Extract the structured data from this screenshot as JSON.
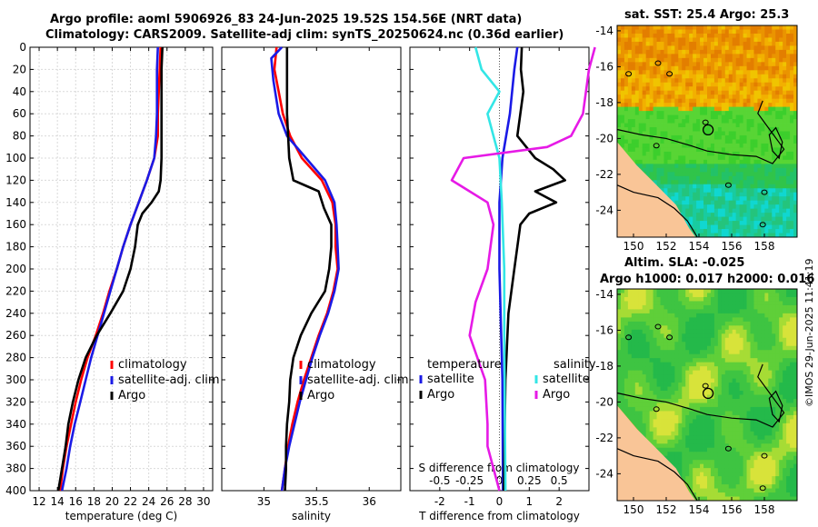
{
  "figure": {
    "title_line1": "Argo profile: aoml 5906926_83 24-Jun-2025 19.52S 154.56E (NRT data)",
    "title_line2": "Climatology: CARS2009. Satellite-adj clim: synTS_20250624.nc (0.36d earlier)",
    "sst_title": "sat. SST: 25.4 Argo: 25.3",
    "sla_title1": "Altim. SLA: -0.025",
    "sla_title2": "Argo h1000: 0.017 h2000: 0.016",
    "stamp": "©IMOS 29-Jun-2025 11:41:19"
  },
  "colors": {
    "climatology": "#ff0000",
    "satellite": "#1a1ae6",
    "argo": "#000000",
    "sal_satellite": "#33e6e6",
    "sal_argo": "#e61ae6"
  },
  "chart_data": [
    {
      "type": "line",
      "id": "temperature",
      "xlabel": "temperature (deg C)",
      "ylabel": "",
      "xlim": [
        11,
        31
      ],
      "ylim": [
        400,
        0
      ],
      "xticks": [
        12,
        14,
        16,
        18,
        20,
        22,
        24,
        26,
        28,
        30
      ],
      "yticks": [
        0,
        20,
        40,
        60,
        80,
        100,
        120,
        140,
        160,
        180,
        200,
        220,
        240,
        260,
        280,
        300,
        320,
        340,
        360,
        380,
        400
      ],
      "grid": true,
      "legend": [
        "climatology",
        "satellite-adj. clim",
        "Argo"
      ],
      "series": [
        {
          "name": "climatology",
          "color_key": "climatology",
          "points": [
            [
              25.3,
              0
            ],
            [
              25.2,
              20
            ],
            [
              25.1,
              40
            ],
            [
              25.0,
              60
            ],
            [
              25.0,
              80
            ],
            [
              24.6,
              100
            ],
            [
              23.8,
              120
            ],
            [
              22.9,
              140
            ],
            [
              22.0,
              160
            ],
            [
              21.2,
              180
            ],
            [
              20.5,
              200
            ],
            [
              19.7,
              220
            ],
            [
              19.0,
              240
            ],
            [
              18.2,
              260
            ],
            [
              17.3,
              280
            ],
            [
              16.6,
              300
            ],
            [
              16.0,
              320
            ],
            [
              15.5,
              340
            ],
            [
              15.0,
              360
            ],
            [
              14.6,
              380
            ],
            [
              14.3,
              400
            ]
          ]
        },
        {
          "name": "satellite-adj. clim",
          "color_key": "satellite",
          "points": [
            [
              25.0,
              0
            ],
            [
              24.9,
              20
            ],
            [
              24.9,
              40
            ],
            [
              24.9,
              60
            ],
            [
              24.8,
              80
            ],
            [
              24.6,
              100
            ],
            [
              23.8,
              120
            ],
            [
              22.9,
              140
            ],
            [
              22.0,
              160
            ],
            [
              21.2,
              180
            ],
            [
              20.5,
              200
            ],
            [
              19.8,
              220
            ],
            [
              19.1,
              240
            ],
            [
              18.4,
              260
            ],
            [
              17.7,
              280
            ],
            [
              17.1,
              300
            ],
            [
              16.5,
              320
            ],
            [
              15.9,
              340
            ],
            [
              15.4,
              360
            ],
            [
              15.0,
              380
            ],
            [
              14.5,
              400
            ]
          ]
        },
        {
          "name": "Argo",
          "color_key": "argo",
          "points": [
            [
              25.5,
              0
            ],
            [
              25.4,
              20
            ],
            [
              25.4,
              40
            ],
            [
              25.4,
              60
            ],
            [
              25.4,
              80
            ],
            [
              25.4,
              100
            ],
            [
              25.3,
              120
            ],
            [
              25.1,
              130
            ],
            [
              24.3,
              140
            ],
            [
              23.3,
              150
            ],
            [
              22.8,
              160
            ],
            [
              22.5,
              180
            ],
            [
              22.0,
              200
            ],
            [
              21.2,
              220
            ],
            [
              19.8,
              240
            ],
            [
              18.3,
              260
            ],
            [
              17.1,
              280
            ],
            [
              16.3,
              300
            ],
            [
              15.7,
              320
            ],
            [
              15.2,
              340
            ],
            [
              14.9,
              360
            ],
            [
              14.5,
              380
            ],
            [
              14.1,
              400
            ]
          ]
        }
      ]
    },
    {
      "type": "line",
      "id": "salinity",
      "xlabel": "salinity",
      "ylabel": "",
      "xlim": [
        34.6,
        36.3
      ],
      "ylim": [
        400,
        0
      ],
      "xticks": [
        35,
        35.5,
        36
      ],
      "yticks": [
        0,
        20,
        40,
        60,
        80,
        100,
        120,
        140,
        160,
        180,
        200,
        220,
        240,
        260,
        280,
        300,
        320,
        340,
        360,
        380,
        400
      ],
      "grid": false,
      "legend": [
        "climatology",
        "satellite-adj. clim",
        "Argo"
      ],
      "series": [
        {
          "name": "climatology",
          "color_key": "climatology",
          "points": [
            [
              35.12,
              0
            ],
            [
              35.1,
              20
            ],
            [
              35.14,
              40
            ],
            [
              35.18,
              60
            ],
            [
              35.25,
              80
            ],
            [
              35.36,
              100
            ],
            [
              35.55,
              120
            ],
            [
              35.65,
              140
            ],
            [
              35.68,
              160
            ],
            [
              35.68,
              180
            ],
            [
              35.7,
              200
            ],
            [
              35.66,
              220
            ],
            [
              35.6,
              240
            ],
            [
              35.52,
              260
            ],
            [
              35.45,
              280
            ],
            [
              35.38,
              300
            ],
            [
              35.32,
              320
            ],
            [
              35.27,
              340
            ],
            [
              35.23,
              360
            ],
            [
              35.2,
              380
            ],
            [
              35.17,
              400
            ]
          ]
        },
        {
          "name": "satellite-adj. clim",
          "color_key": "satellite",
          "points": [
            [
              35.17,
              0
            ],
            [
              35.07,
              10
            ],
            [
              35.09,
              30
            ],
            [
              35.14,
              60
            ],
            [
              35.22,
              80
            ],
            [
              35.4,
              100
            ],
            [
              35.58,
              120
            ],
            [
              35.67,
              140
            ],
            [
              35.69,
              160
            ],
            [
              35.7,
              180
            ],
            [
              35.71,
              200
            ],
            [
              35.67,
              220
            ],
            [
              35.61,
              240
            ],
            [
              35.53,
              260
            ],
            [
              35.46,
              280
            ],
            [
              35.4,
              300
            ],
            [
              35.34,
              320
            ],
            [
              35.29,
              340
            ],
            [
              35.24,
              360
            ],
            [
              35.2,
              380
            ],
            [
              35.17,
              400
            ]
          ]
        },
        {
          "name": "Argo",
          "color_key": "argo",
          "points": [
            [
              35.22,
              0
            ],
            [
              35.22,
              20
            ],
            [
              35.22,
              40
            ],
            [
              35.22,
              60
            ],
            [
              35.23,
              80
            ],
            [
              35.24,
              100
            ],
            [
              35.28,
              120
            ],
            [
              35.4,
              125
            ],
            [
              35.52,
              130
            ],
            [
              35.57,
              145
            ],
            [
              35.64,
              160
            ],
            [
              35.64,
              180
            ],
            [
              35.62,
              200
            ],
            [
              35.58,
              220
            ],
            [
              35.45,
              240
            ],
            [
              35.35,
              260
            ],
            [
              35.28,
              280
            ],
            [
              35.25,
              300
            ],
            [
              35.24,
              320
            ],
            [
              35.22,
              340
            ],
            [
              35.21,
              360
            ],
            [
              35.21,
              380
            ],
            [
              35.2,
              400
            ]
          ]
        }
      ]
    },
    {
      "type": "line",
      "id": "difference",
      "xlabel": "T difference from climatology",
      "top_xlabel": "S difference from climatology",
      "ylabel": "",
      "xlim": [
        -3,
        3
      ],
      "top_xlim": [
        -0.75,
        0.75
      ],
      "ylim": [
        400,
        0
      ],
      "xticks": [
        -2,
        -1,
        0,
        1,
        2
      ],
      "xtick_labels": [
        "-2",
        "-1",
        "0",
        "1",
        "2"
      ],
      "top_xticks": [
        -0.5,
        -0.25,
        0,
        0.25,
        0.5
      ],
      "top_xtick_labels": [
        "-0.5",
        "-0.25",
        "0",
        "0.25",
        "0.5"
      ],
      "yticks": [
        0,
        20,
        40,
        60,
        80,
        100,
        120,
        140,
        160,
        180,
        200,
        220,
        240,
        260,
        280,
        300,
        320,
        340,
        360,
        380,
        400
      ],
      "grid": false,
      "legend_headers": [
        "temperature",
        "salinity"
      ],
      "legend_temperature": [
        "satellite",
        "Argo"
      ],
      "legend_salinity": [
        "satellite",
        "Argo"
      ],
      "series": [
        {
          "name": "T satellite",
          "color_key": "satellite",
          "points": [
            [
              0.6,
              0
            ],
            [
              0.5,
              20
            ],
            [
              0.35,
              60
            ],
            [
              0.1,
              100
            ],
            [
              0.0,
              140
            ],
            [
              0.0,
              180
            ],
            [
              0.0,
              200
            ],
            [
              0.05,
              250
            ],
            [
              0.1,
              300
            ],
            [
              0.12,
              400
            ]
          ]
        },
        {
          "name": "T Argo",
          "color_key": "argo",
          "points": [
            [
              0.75,
              0
            ],
            [
              0.72,
              20
            ],
            [
              0.8,
              40
            ],
            [
              0.7,
              60
            ],
            [
              0.6,
              80
            ],
            [
              1.2,
              100
            ],
            [
              1.8,
              110
            ],
            [
              2.2,
              120
            ],
            [
              1.2,
              130
            ],
            [
              1.9,
              140
            ],
            [
              1.0,
              150
            ],
            [
              0.7,
              160
            ],
            [
              0.5,
              200
            ],
            [
              0.3,
              240
            ],
            [
              0.2,
              300
            ],
            [
              0.15,
              400
            ]
          ]
        },
        {
          "name": "S satellite",
          "color_key": "sal_satellite",
          "points": [
            [
              -0.2,
              0
            ],
            [
              -0.15,
              20
            ],
            [
              0.0,
              40
            ],
            [
              -0.1,
              60
            ],
            [
              -0.05,
              80
            ],
            [
              0.0,
              100
            ],
            [
              0.02,
              140
            ],
            [
              0.04,
              200
            ],
            [
              0.04,
              260
            ],
            [
              0.05,
              400
            ]
          ]
        },
        {
          "name": "S Argo",
          "color_key": "sal_argo",
          "points": [
            [
              0.8,
              0
            ],
            [
              0.75,
              20
            ],
            [
              0.7,
              60
            ],
            [
              0.6,
              80
            ],
            [
              0.4,
              90
            ],
            [
              -0.3,
              100
            ],
            [
              -0.4,
              120
            ],
            [
              -0.1,
              140
            ],
            [
              -0.05,
              160
            ],
            [
              -0.1,
              200
            ],
            [
              -0.2,
              230
            ],
            [
              -0.25,
              260
            ],
            [
              -0.12,
              300
            ],
            [
              -0.1,
              340
            ],
            [
              -0.1,
              360
            ],
            [
              0.0,
              400
            ]
          ]
        }
      ]
    },
    {
      "type": "heatmap",
      "id": "sst_map",
      "title": "sat. SST: 25.4 Argo: 25.3",
      "xlim": [
        149,
        160
      ],
      "ylim": [
        -25.5,
        -13.7
      ],
      "xticks": [
        150,
        152,
        154,
        156,
        158
      ],
      "yticks": [
        -14,
        -16,
        -18,
        -20,
        -22,
        -24
      ],
      "argo_position": [
        154.56,
        -19.52
      ]
    },
    {
      "type": "heatmap",
      "id": "sla_map",
      "title": "Altim. SLA: -0.025",
      "subtitle": "Argo h1000: 0.017 h2000: 0.016",
      "xlim": [
        149,
        160
      ],
      "ylim": [
        -25.5,
        -13.7
      ],
      "xticks": [
        150,
        152,
        154,
        156,
        158
      ],
      "yticks": [
        -14,
        -16,
        -18,
        -20,
        -22,
        -24
      ],
      "argo_position": [
        154.56,
        -19.52
      ]
    }
  ]
}
